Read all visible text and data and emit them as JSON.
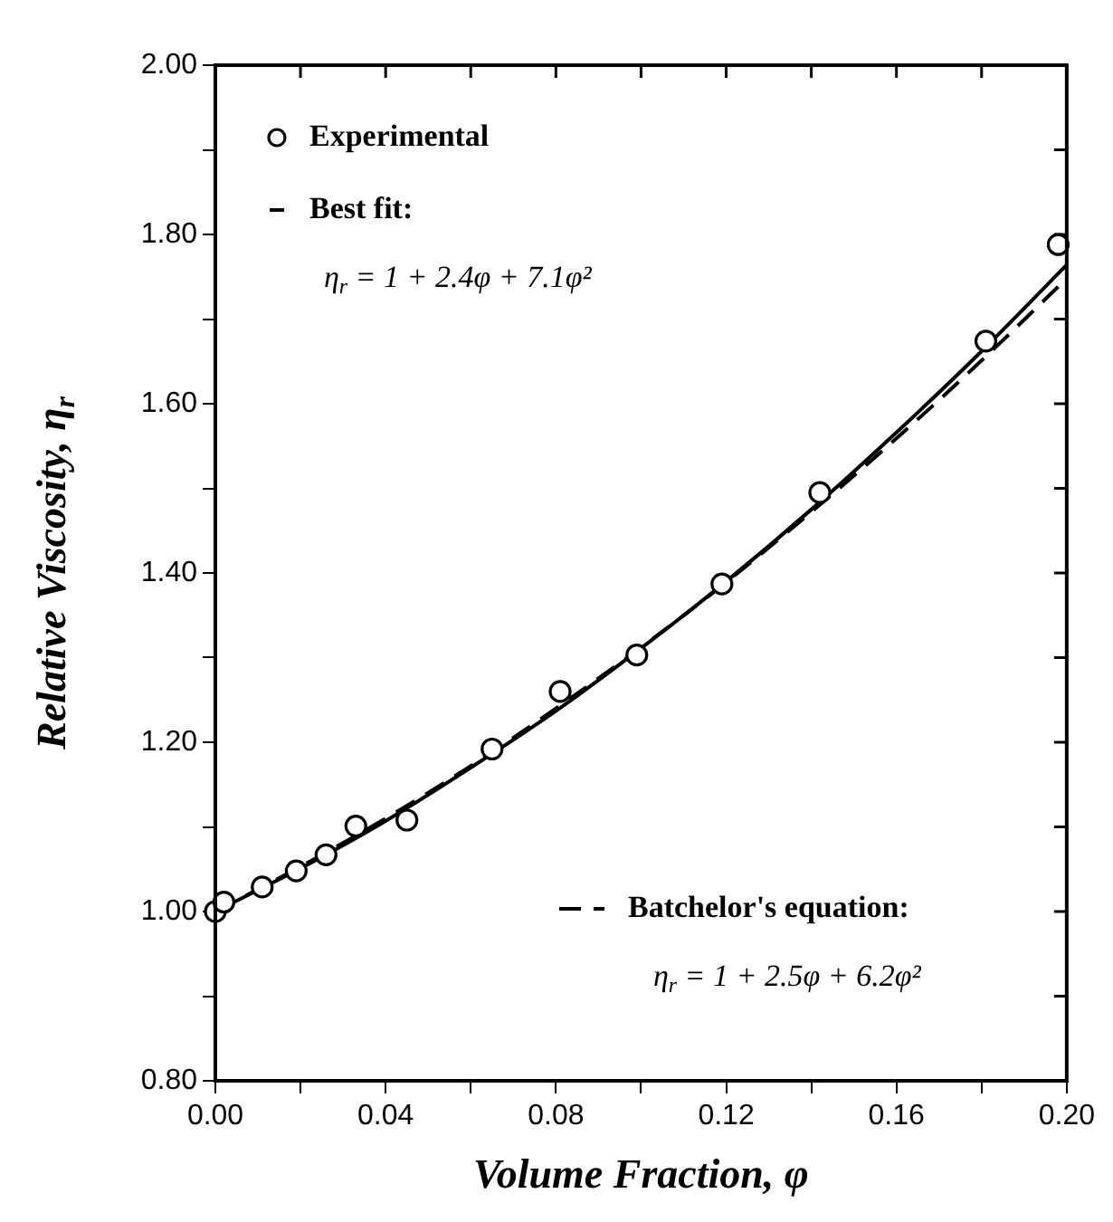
{
  "chart_data": {
    "type": "scatter",
    "xlabel": "Volume Fraction, φ",
    "ylabel": "Relative Viscosity, η$_{r}$",
    "xlim": [
      0,
      0.2
    ],
    "ylim": [
      0.8,
      2.0
    ],
    "xticks": [
      {
        "value": 0,
        "label": "0.00"
      },
      {
        "value": 0.02,
        "label": null
      },
      {
        "value": 0.04,
        "label": "0.04"
      },
      {
        "value": 0.06,
        "label": null
      },
      {
        "value": 0.08,
        "label": "0.08"
      },
      {
        "value": 0.1,
        "label": null
      },
      {
        "value": 0.12,
        "label": "0.12"
      },
      {
        "value": 0.14,
        "label": null
      },
      {
        "value": 0.16,
        "label": "0.16"
      },
      {
        "value": 0.18,
        "label": null
      },
      {
        "value": 0.2,
        "label": "0.20"
      }
    ],
    "yticks": [
      {
        "value": 0.8,
        "label": "0.80"
      },
      {
        "value": 0.9,
        "label": null
      },
      {
        "value": 1.0,
        "label": "1.00"
      },
      {
        "value": 1.1,
        "label": null
      },
      {
        "value": 1.2,
        "label": "1.20"
      },
      {
        "value": 1.3,
        "label": null
      },
      {
        "value": 1.4,
        "label": "1.40"
      },
      {
        "value": 1.5,
        "label": null
      },
      {
        "value": 1.6,
        "label": "1.60"
      },
      {
        "value": 1.7,
        "label": null
      },
      {
        "value": 1.8,
        "label": "1.80"
      },
      {
        "value": 1.9,
        "label": null
      },
      {
        "value": 2.0,
        "label": "2.00"
      }
    ],
    "grid": false,
    "legend": "top left",
    "series": [
      {
        "name": "Experimental",
        "marker": "circle",
        "color": "#000000",
        "x": [
          0.0,
          0.002,
          0.011,
          0.019,
          0.026,
          0.033,
          0.045,
          0.065,
          0.081,
          0.099,
          0.119,
          0.142,
          0.181,
          0.198
        ],
        "values": [
          1.0,
          1.011,
          1.029,
          1.048,
          1.067,
          1.101,
          1.108,
          1.192,
          1.26,
          1.303,
          1.387,
          1.495,
          1.674,
          1.788
        ]
      },
      {
        "name": "Best fit:",
        "type": "line",
        "marker": "none",
        "line_style": "solid",
        "color": "#000000",
        "x": [
          0,
          0.02,
          0.04,
          0.06,
          0.08,
          0.1,
          0.12,
          0.14,
          0.16,
          0.18,
          0.2
        ],
        "values": [
          1.0,
          1.051,
          1.107,
          1.17,
          1.237,
          1.311,
          1.39,
          1.475,
          1.566,
          1.662,
          1.764
        ]
      },
      {
        "name": "Batchelor's equation:",
        "type": "line",
        "marker": "none",
        "line_style": "dashed",
        "color": "#000000",
        "x": [
          0,
          0.02,
          0.04,
          0.06,
          0.08,
          0.1,
          0.12,
          0.14,
          0.16,
          0.18,
          0.2
        ],
        "values": [
          1.0,
          1.053,
          1.11,
          1.172,
          1.24,
          1.312,
          1.389,
          1.472,
          1.559,
          1.651,
          1.748
        ]
      }
    ],
    "annotations": [
      "η$_{r}$ = 1 + 2.4φ + 7.1φ²",
      "η$_{r}$ = 1 + 2.5φ + 6.2φ²"
    ]
  }
}
